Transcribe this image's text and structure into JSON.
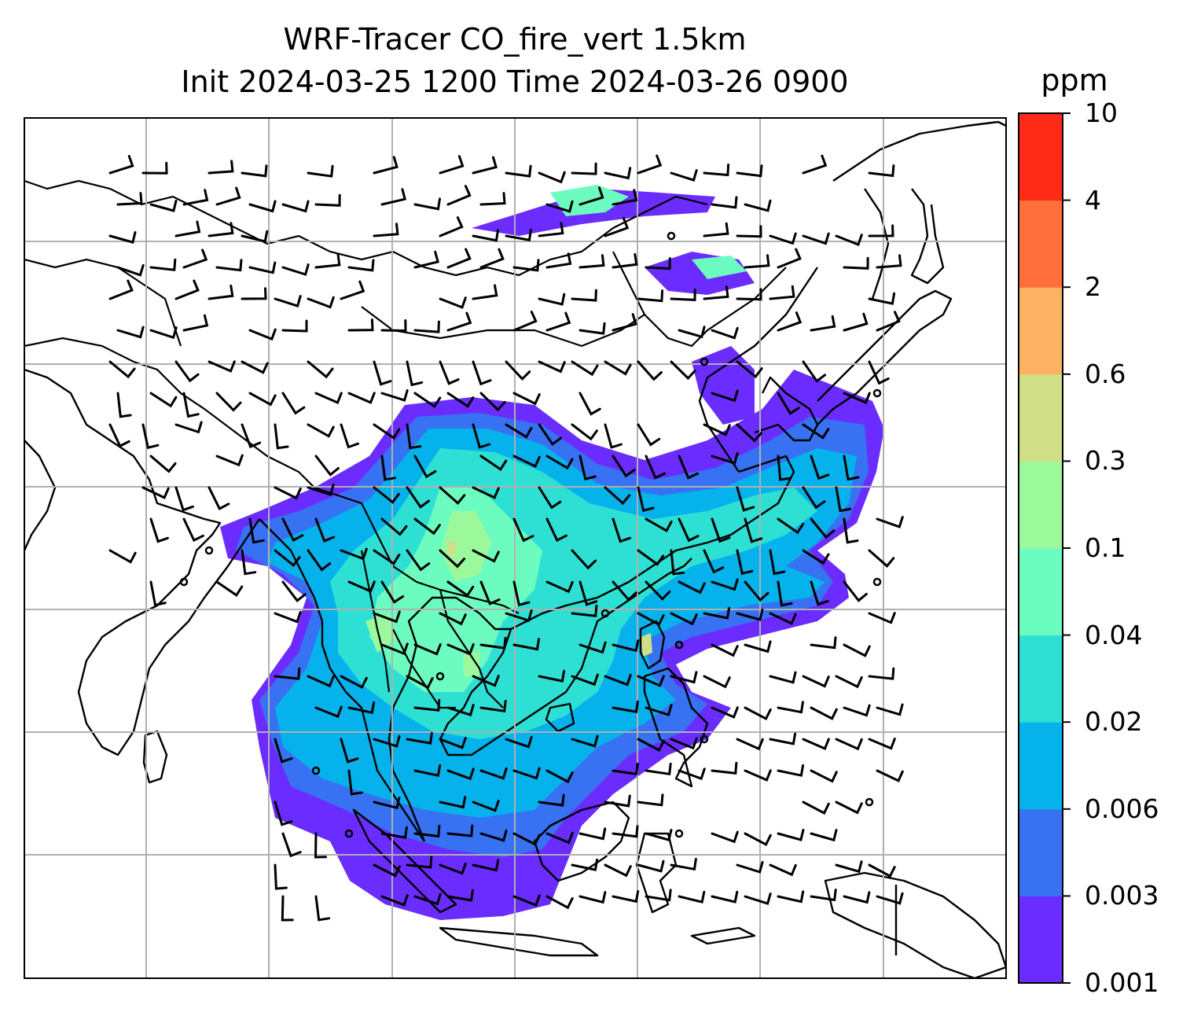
{
  "title": {
    "line1": "WRF-Tracer CO_fire_vert 1.5km",
    "line2": "Init 2024-03-25 1200 Time 2024-03-26 0900"
  },
  "colorbar": {
    "unit": "ppm",
    "ticks": [
      "0.001",
      "0.003",
      "0.006",
      "0.02",
      "0.04",
      "0.1",
      "0.3",
      "0.6",
      "2",
      "4",
      "10"
    ],
    "colors": [
      "#6a2cff",
      "#3672f2",
      "#05b2ec",
      "#2ee0d4",
      "#6dfcbf",
      "#9cf99b",
      "#d0df86",
      "#fdb163",
      "#ff6e3b",
      "#ff2a18"
    ]
  },
  "map": {
    "region": "Southeast Asia / East Asia",
    "gridlines": true,
    "background": "#ffffff",
    "coastline_color": "#000000"
  }
}
